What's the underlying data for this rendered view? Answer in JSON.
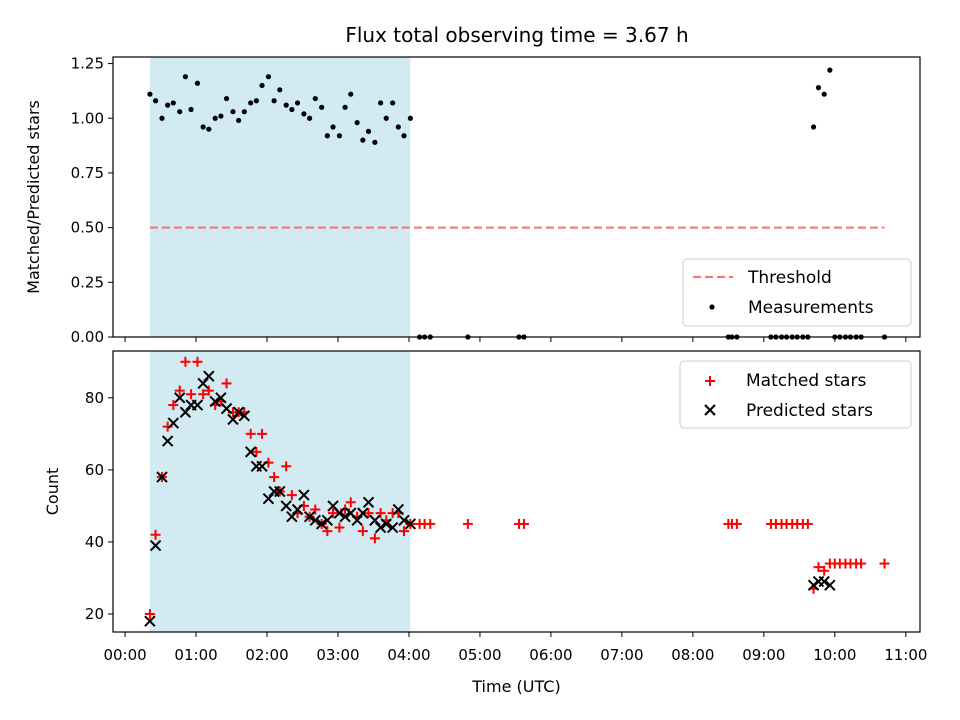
{
  "title": "Flux total observing time = 3.67 h",
  "chart_data": [
    {
      "type": "scatter",
      "ylabel": "Matched/Predicted stars",
      "xlabel": "",
      "xlim": [
        -0.17,
        11.2
      ],
      "ylim": [
        0,
        1.28
      ],
      "x_ticks": [
        "00:00",
        "01:00",
        "02:00",
        "03:00",
        "04:00",
        "05:00",
        "06:00",
        "07:00",
        "08:00",
        "09:00",
        "10:00",
        "11:00"
      ],
      "y_ticks": [
        0.0,
        0.25,
        0.5,
        0.75,
        1.0,
        1.25
      ],
      "y_tick_labels": [
        "0.00",
        "0.25",
        "0.50",
        "0.75",
        "1.00",
        "1.25"
      ],
      "shaded_region": [
        0.35,
        4.02
      ],
      "shaded_color": "#add8e6",
      "threshold": {
        "name": "Threshold",
        "value": 0.5,
        "x_range": [
          0.35,
          10.7
        ],
        "color": "#ff6f6f"
      },
      "legend": {
        "position": "lower-right",
        "entries": [
          "Threshold",
          "Measurements"
        ]
      },
      "measurements": {
        "name": "Measurements",
        "color": "#000000",
        "points": [
          [
            0.35,
            1.11
          ],
          [
            0.43,
            1.08
          ],
          [
            0.52,
            1.0
          ],
          [
            0.6,
            1.06
          ],
          [
            0.68,
            1.07
          ],
          [
            0.77,
            1.03
          ],
          [
            0.85,
            1.19
          ],
          [
            0.93,
            1.04
          ],
          [
            1.02,
            1.16
          ],
          [
            1.1,
            0.96
          ],
          [
            1.18,
            0.95
          ],
          [
            1.27,
            1.0
          ],
          [
            1.35,
            1.01
          ],
          [
            1.43,
            1.09
          ],
          [
            1.52,
            1.03
          ],
          [
            1.6,
            0.99
          ],
          [
            1.68,
            1.03
          ],
          [
            1.77,
            1.07
          ],
          [
            1.85,
            1.08
          ],
          [
            1.93,
            1.15
          ],
          [
            2.02,
            1.19
          ],
          [
            2.1,
            1.08
          ],
          [
            2.18,
            1.13
          ],
          [
            2.27,
            1.06
          ],
          [
            2.35,
            1.04
          ],
          [
            2.43,
            1.07
          ],
          [
            2.52,
            1.02
          ],
          [
            2.6,
            1.0
          ],
          [
            2.68,
            1.09
          ],
          [
            2.77,
            1.05
          ],
          [
            2.85,
            0.92
          ],
          [
            2.93,
            0.96
          ],
          [
            3.02,
            0.92
          ],
          [
            3.1,
            1.05
          ],
          [
            3.18,
            1.11
          ],
          [
            3.27,
            0.98
          ],
          [
            3.35,
            0.9
          ],
          [
            3.43,
            0.94
          ],
          [
            3.52,
            0.89
          ],
          [
            3.6,
            1.07
          ],
          [
            3.68,
            1.0
          ],
          [
            3.77,
            1.07
          ],
          [
            3.85,
            0.96
          ],
          [
            3.93,
            0.92
          ],
          [
            4.02,
            1.0
          ],
          [
            4.15,
            0.0
          ],
          [
            4.22,
            0.0
          ],
          [
            4.3,
            0.0
          ],
          [
            4.83,
            0.0
          ],
          [
            5.55,
            0.0
          ],
          [
            5.62,
            0.0
          ],
          [
            8.5,
            0.0
          ],
          [
            8.55,
            0.0
          ],
          [
            8.62,
            0.0
          ],
          [
            9.1,
            0.0
          ],
          [
            9.17,
            0.0
          ],
          [
            9.25,
            0.0
          ],
          [
            9.32,
            0.0
          ],
          [
            9.4,
            0.0
          ],
          [
            9.47,
            0.0
          ],
          [
            9.55,
            0.0
          ],
          [
            9.62,
            0.0
          ],
          [
            9.7,
            0.96
          ],
          [
            9.77,
            1.14
          ],
          [
            9.85,
            1.11
          ],
          [
            9.93,
            1.22
          ],
          [
            10.0,
            0.0
          ],
          [
            10.07,
            0.0
          ],
          [
            10.15,
            0.0
          ],
          [
            10.22,
            0.0
          ],
          [
            10.3,
            0.0
          ],
          [
            10.37,
            0.0
          ],
          [
            10.7,
            0.0
          ]
        ]
      }
    },
    {
      "type": "scatter",
      "xlabel": "Time (UTC)",
      "ylabel": "Count",
      "xlim": [
        -0.17,
        11.2
      ],
      "ylim": [
        15,
        93
      ],
      "x_ticks": [
        "00:00",
        "01:00",
        "02:00",
        "03:00",
        "04:00",
        "05:00",
        "06:00",
        "07:00",
        "08:00",
        "09:00",
        "10:00",
        "11:00"
      ],
      "y_ticks": [
        20,
        40,
        60,
        80
      ],
      "shaded_region": [
        0.35,
        4.02
      ],
      "shaded_color": "#add8e6",
      "legend": {
        "position": "upper-right",
        "entries": [
          "Matched stars",
          "Predicted stars"
        ]
      },
      "series": [
        {
          "name": "Matched stars",
          "marker": "+",
          "color": "#ff0000",
          "points": [
            [
              0.35,
              20
            ],
            [
              0.43,
              42
            ],
            [
              0.52,
              58
            ],
            [
              0.6,
              72
            ],
            [
              0.68,
              78
            ],
            [
              0.77,
              82
            ],
            [
              0.85,
              90
            ],
            [
              0.93,
              81
            ],
            [
              1.02,
              90
            ],
            [
              1.1,
              81
            ],
            [
              1.18,
              82
            ],
            [
              1.27,
              78
            ],
            [
              1.35,
              79
            ],
            [
              1.43,
              84
            ],
            [
              1.52,
              76
            ],
            [
              1.6,
              76
            ],
            [
              1.68,
              76
            ],
            [
              1.77,
              70
            ],
            [
              1.85,
              65
            ],
            [
              1.93,
              70
            ],
            [
              2.02,
              62
            ],
            [
              2.1,
              58
            ],
            [
              2.18,
              54
            ],
            [
              2.27,
              61
            ],
            [
              2.35,
              53
            ],
            [
              2.43,
              48
            ],
            [
              2.52,
              50
            ],
            [
              2.6,
              47
            ],
            [
              2.68,
              49
            ],
            [
              2.77,
              45
            ],
            [
              2.85,
              43
            ],
            [
              2.93,
              48
            ],
            [
              3.02,
              44
            ],
            [
              3.1,
              49
            ],
            [
              3.18,
              51
            ],
            [
              3.27,
              47
            ],
            [
              3.35,
              43
            ],
            [
              3.43,
              48
            ],
            [
              3.52,
              41
            ],
            [
              3.6,
              48
            ],
            [
              3.68,
              46
            ],
            [
              3.77,
              48
            ],
            [
              3.85,
              48
            ],
            [
              3.93,
              43
            ],
            [
              4.02,
              45
            ],
            [
              4.15,
              45
            ],
            [
              4.22,
              45
            ],
            [
              4.3,
              45
            ],
            [
              4.83,
              45
            ],
            [
              5.55,
              45
            ],
            [
              5.62,
              45
            ],
            [
              8.5,
              45
            ],
            [
              8.55,
              45
            ],
            [
              8.62,
              45
            ],
            [
              9.1,
              45
            ],
            [
              9.17,
              45
            ],
            [
              9.25,
              45
            ],
            [
              9.32,
              45
            ],
            [
              9.4,
              45
            ],
            [
              9.47,
              45
            ],
            [
              9.55,
              45
            ],
            [
              9.62,
              45
            ],
            [
              9.7,
              27
            ],
            [
              9.77,
              33
            ],
            [
              9.85,
              32
            ],
            [
              9.93,
              34
            ],
            [
              10.0,
              34
            ],
            [
              10.07,
              34
            ],
            [
              10.15,
              34
            ],
            [
              10.22,
              34
            ],
            [
              10.3,
              34
            ],
            [
              10.37,
              34
            ],
            [
              10.7,
              34
            ]
          ]
        },
        {
          "name": "Predicted stars",
          "marker": "x",
          "color": "#000000",
          "points": [
            [
              0.35,
              18
            ],
            [
              0.43,
              39
            ],
            [
              0.52,
              58
            ],
            [
              0.6,
              68
            ],
            [
              0.68,
              73
            ],
            [
              0.77,
              80
            ],
            [
              0.85,
              76
            ],
            [
              0.93,
              78
            ],
            [
              1.02,
              78
            ],
            [
              1.1,
              84
            ],
            [
              1.18,
              86
            ],
            [
              1.27,
              79
            ],
            [
              1.35,
              80
            ],
            [
              1.43,
              77
            ],
            [
              1.52,
              74
            ],
            [
              1.6,
              76
            ],
            [
              1.68,
              75
            ],
            [
              1.77,
              65
            ],
            [
              1.85,
              61
            ],
            [
              1.93,
              61
            ],
            [
              2.02,
              52
            ],
            [
              2.1,
              54
            ],
            [
              2.18,
              54
            ],
            [
              2.27,
              50
            ],
            [
              2.35,
              47
            ],
            [
              2.43,
              49
            ],
            [
              2.52,
              53
            ],
            [
              2.6,
              47
            ],
            [
              2.68,
              46
            ],
            [
              2.77,
              45
            ],
            [
              2.85,
              46
            ],
            [
              2.93,
              50
            ],
            [
              3.02,
              48
            ],
            [
              3.1,
              47
            ],
            [
              3.18,
              48
            ],
            [
              3.27,
              46
            ],
            [
              3.35,
              48
            ],
            [
              3.43,
              51
            ],
            [
              3.52,
              46
            ],
            [
              3.6,
              44
            ],
            [
              3.68,
              45
            ],
            [
              3.77,
              44
            ],
            [
              3.85,
              49
            ],
            [
              3.93,
              46
            ],
            [
              4.02,
              45
            ],
            [
              9.7,
              28
            ],
            [
              9.77,
              29
            ],
            [
              9.85,
              29
            ],
            [
              9.93,
              28
            ]
          ]
        }
      ]
    }
  ]
}
